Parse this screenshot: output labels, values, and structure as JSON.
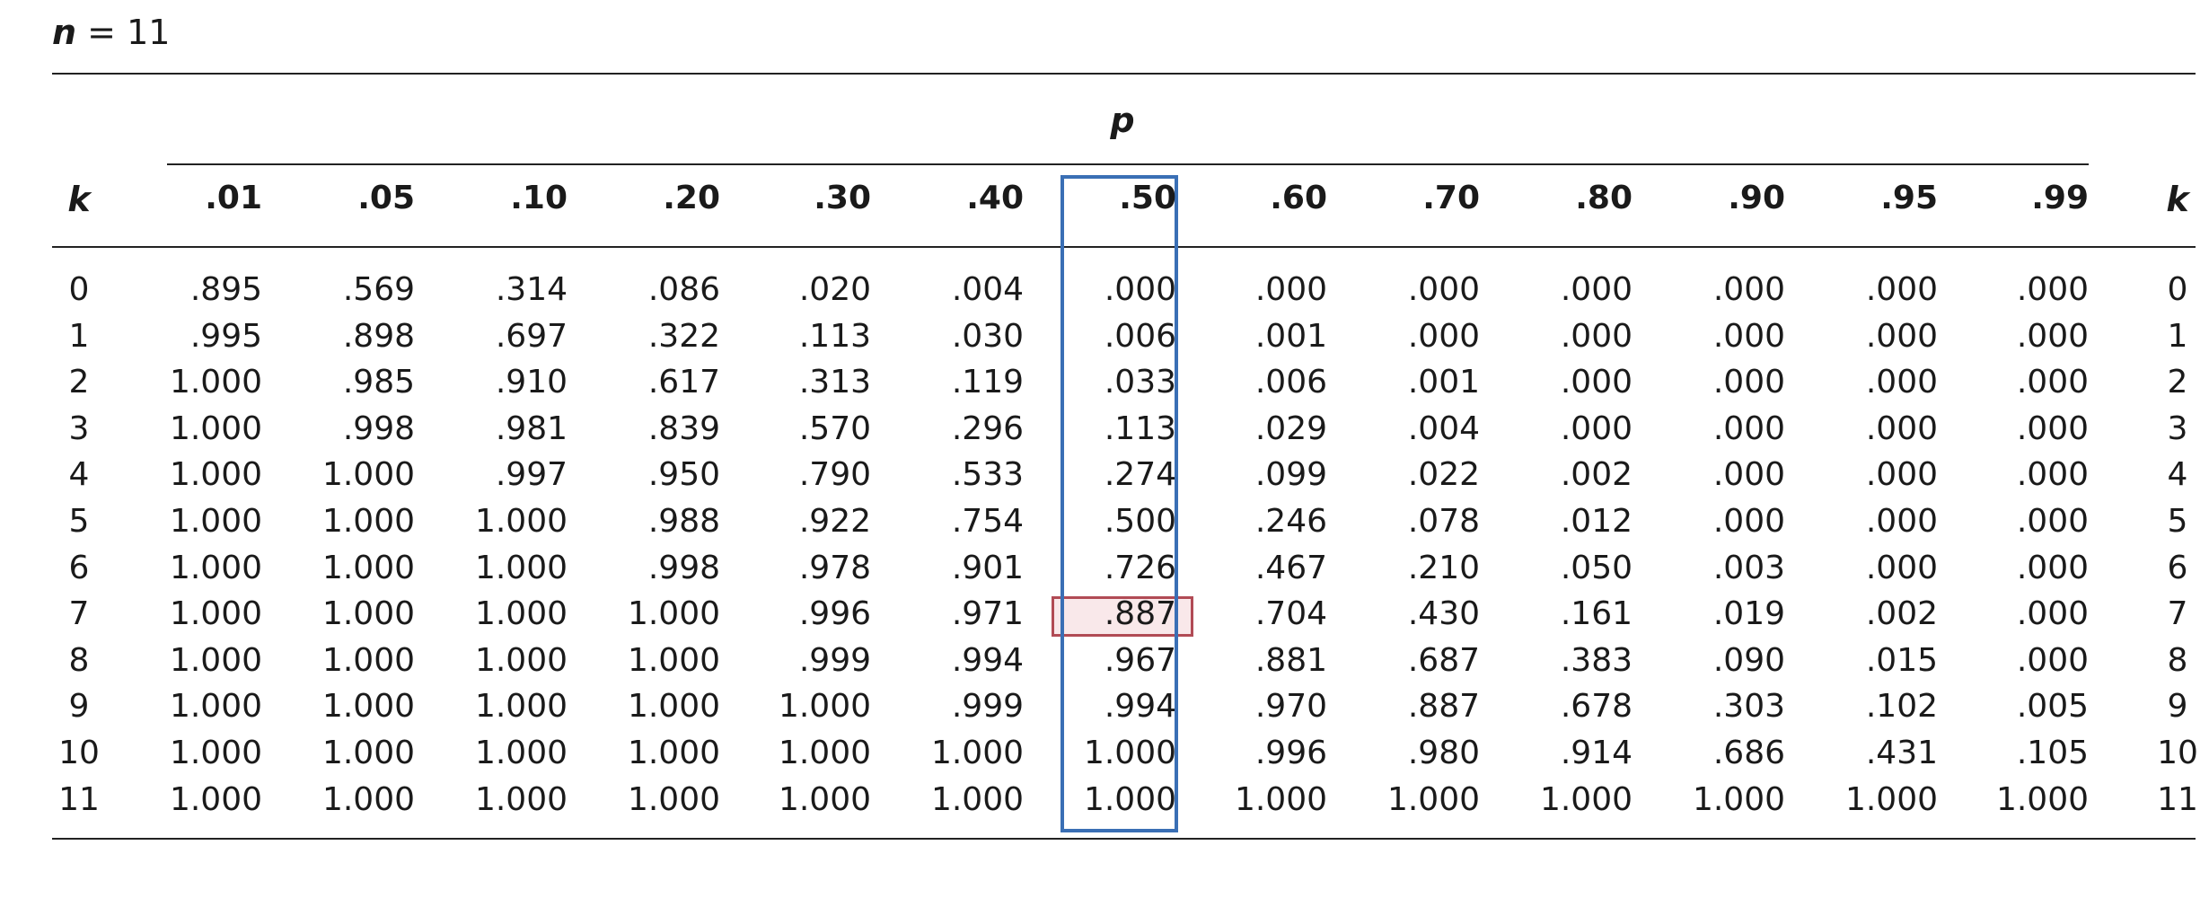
{
  "table_title": {
    "variable": "n",
    "equals": "=",
    "value": "11"
  },
  "p_header": "p",
  "k_header": "k",
  "columns": [
    ".01",
    ".05",
    ".10",
    ".20",
    ".30",
    ".40",
    ".50",
    ".60",
    ".70",
    ".80",
    ".90",
    ".95",
    ".99"
  ],
  "highlight": {
    "column": ".50",
    "row_k": "7",
    "value": ".887",
    "column_border_color": "#3a6fb5",
    "cell_border_color": "#b14b55",
    "cell_fill_color": "#f9e8ea"
  },
  "rows": [
    {
      "k": "0",
      "values": [
        ".895",
        ".569",
        ".314",
        ".086",
        ".020",
        ".004",
        ".000",
        ".000",
        ".000",
        ".000",
        ".000",
        ".000",
        ".000"
      ]
    },
    {
      "k": "1",
      "values": [
        ".995",
        ".898",
        ".697",
        ".322",
        ".113",
        ".030",
        ".006",
        ".001",
        ".000",
        ".000",
        ".000",
        ".000",
        ".000"
      ]
    },
    {
      "k": "2",
      "values": [
        "1.000",
        ".985",
        ".910",
        ".617",
        ".313",
        ".119",
        ".033",
        ".006",
        ".001",
        ".000",
        ".000",
        ".000",
        ".000"
      ]
    },
    {
      "k": "3",
      "values": [
        "1.000",
        ".998",
        ".981",
        ".839",
        ".570",
        ".296",
        ".113",
        ".029",
        ".004",
        ".000",
        ".000",
        ".000",
        ".000"
      ]
    },
    {
      "k": "4",
      "values": [
        "1.000",
        "1.000",
        ".997",
        ".950",
        ".790",
        ".533",
        ".274",
        ".099",
        ".022",
        ".002",
        ".000",
        ".000",
        ".000"
      ]
    },
    {
      "k": "5",
      "values": [
        "1.000",
        "1.000",
        "1.000",
        ".988",
        ".922",
        ".754",
        ".500",
        ".246",
        ".078",
        ".012",
        ".000",
        ".000",
        ".000"
      ]
    },
    {
      "k": "6",
      "values": [
        "1.000",
        "1.000",
        "1.000",
        ".998",
        ".978",
        ".901",
        ".726",
        ".467",
        ".210",
        ".050",
        ".003",
        ".000",
        ".000"
      ]
    },
    {
      "k": "7",
      "values": [
        "1.000",
        "1.000",
        "1.000",
        "1.000",
        ".996",
        ".971",
        ".887",
        ".704",
        ".430",
        ".161",
        ".019",
        ".002",
        ".000"
      ]
    },
    {
      "k": "8",
      "values": [
        "1.000",
        "1.000",
        "1.000",
        "1.000",
        ".999",
        ".994",
        ".967",
        ".881",
        ".687",
        ".383",
        ".090",
        ".015",
        ".000"
      ]
    },
    {
      "k": "9",
      "values": [
        "1.000",
        "1.000",
        "1.000",
        "1.000",
        "1.000",
        ".999",
        ".994",
        ".970",
        ".887",
        ".678",
        ".303",
        ".102",
        ".005"
      ]
    },
    {
      "k": "10",
      "values": [
        "1.000",
        "1.000",
        "1.000",
        "1.000",
        "1.000",
        "1.000",
        "1.000",
        ".996",
        ".980",
        ".914",
        ".686",
        ".431",
        ".105"
      ]
    },
    {
      "k": "11",
      "values": [
        "1.000",
        "1.000",
        "1.000",
        "1.000",
        "1.000",
        "1.000",
        "1.000",
        "1.000",
        "1.000",
        "1.000",
        "1.000",
        "1.000",
        "1.000"
      ]
    }
  ]
}
